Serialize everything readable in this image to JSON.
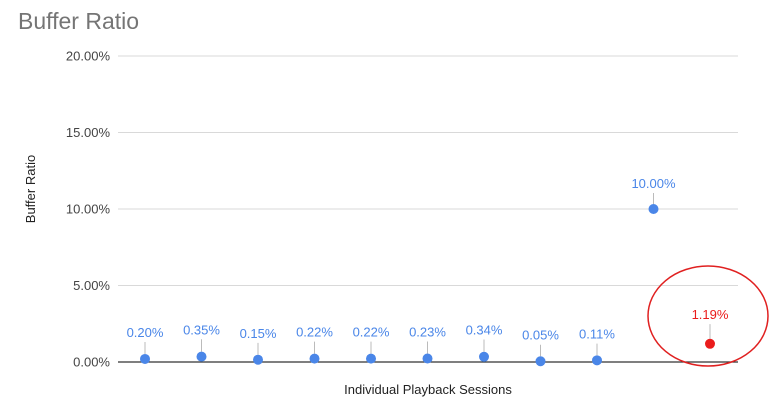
{
  "chart_data": {
    "type": "scatter",
    "title": "Buffer Ratio",
    "xlabel": "Individual Playback Sessions",
    "ylabel": "Buffer Ratio",
    "ylim": [
      0,
      20
    ],
    "yticks": [
      "0.00%",
      "5.00%",
      "10.00%",
      "15.00%",
      "20.00%"
    ],
    "grid": true,
    "points": [
      {
        "x": 1,
        "y": 0.2,
        "label": "0.20%"
      },
      {
        "x": 2,
        "y": 0.35,
        "label": "0.35%"
      },
      {
        "x": 3,
        "y": 0.15,
        "label": "0.15%"
      },
      {
        "x": 4,
        "y": 0.22,
        "label": "0.22%"
      },
      {
        "x": 5,
        "y": 0.22,
        "label": "0.22%"
      },
      {
        "x": 6,
        "y": 0.23,
        "label": "0.23%"
      },
      {
        "x": 7,
        "y": 0.34,
        "label": "0.34%"
      },
      {
        "x": 8,
        "y": 0.05,
        "label": "0.05%"
      },
      {
        "x": 9,
        "y": 0.11,
        "label": "0.11%"
      },
      {
        "x": 10,
        "y": 10.0,
        "label": "10.00%"
      },
      {
        "x": 11,
        "y": 1.19,
        "label": "1.19%",
        "highlight": true
      }
    ],
    "colors": {
      "point": "#4a86e8",
      "highlight": "#ea1c1c",
      "grid": "#d9d9d9",
      "baseline": "#333333",
      "annotation_circle": "#e02020"
    },
    "annotation": "red circle around the 1.19% point"
  }
}
